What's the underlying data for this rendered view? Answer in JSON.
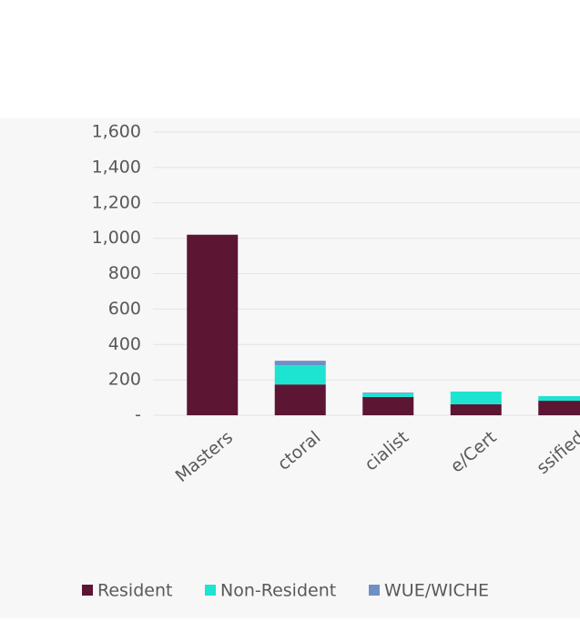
{
  "chart_data": {
    "type": "stacked_bar",
    "categories": [
      "Masters",
      "ctoral",
      "cialist",
      "e/Cert",
      "ssified"
    ],
    "series": [
      {
        "name": "Resident",
        "color": "#5c1533",
        "values": [
          1020,
          174,
          103,
          62,
          82
        ]
      },
      {
        "name": "Non-Resident",
        "color": "#1de3d1",
        "values": [
          0,
          108,
          20,
          72,
          26
        ]
      },
      {
        "name": "WUE/WICHE",
        "color": "#6f8fc7",
        "values": [
          0,
          26,
          5,
          0,
          0
        ]
      }
    ],
    "ylim": [
      0,
      1600
    ],
    "yticks": [
      {
        "value": 0,
        "label": "-"
      },
      200,
      400,
      600,
      800,
      {
        "value": 1000,
        "label": "1,000"
      },
      {
        "value": 1200,
        "label": "1,200"
      },
      {
        "value": 1400,
        "label": "1,400"
      },
      {
        "value": 1600,
        "label": "1,600"
      }
    ],
    "grid": true
  }
}
